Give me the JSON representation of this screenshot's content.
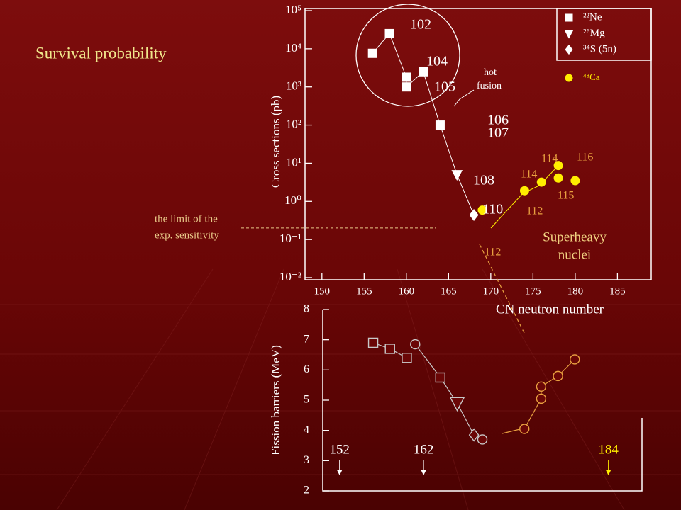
{
  "slide_title": "Survival probability",
  "chart_data": [
    {
      "type": "scatter",
      "yscale": "log",
      "ylabel": "Cross sections (pb)",
      "xlabel": "CN neutron number",
      "xlim": [
        148,
        189
      ],
      "xticks": [
        150,
        155,
        160,
        165,
        170,
        175,
        180,
        185
      ],
      "ylim": [
        0.01,
        100000
      ],
      "yticks": [
        {
          "value": 0.01,
          "label": "10⁻²"
        },
        {
          "value": 0.1,
          "label": "10⁻¹"
        },
        {
          "value": 1,
          "label": "10⁰"
        },
        {
          "value": 10,
          "label": "10¹"
        },
        {
          "value": 100,
          "label": "10²"
        },
        {
          "value": 1000,
          "label": "10³"
        },
        {
          "value": 10000,
          "label": "10⁴"
        },
        {
          "value": 100000,
          "label": "10⁵"
        }
      ],
      "legend": "upper right",
      "series": [
        {
          "name": "²²Ne",
          "color": "#ffffff",
          "marker": "square",
          "line": true,
          "x": [
            156,
            158,
            160,
            160,
            162,
            164
          ],
          "values": [
            7600,
            25000,
            1800,
            1000,
            2500,
            100
          ]
        },
        {
          "name": "²⁶Mg",
          "color": "#ffffff",
          "marker": "triangle",
          "x": [
            166
          ],
          "values": [
            5
          ]
        },
        {
          "name": "³⁴S (5n)",
          "color": "#ffffff",
          "marker": "diamond",
          "x": [
            168
          ],
          "values": [
            0.44
          ]
        },
        {
          "name": "⁴⁸Ca",
          "color": "#ffee00",
          "marker": "circle",
          "x": [
            169,
            174,
            176,
            178,
            178,
            180
          ],
          "values": [
            0.59,
            1.9,
            3.2,
            4.1,
            8.7,
            3.5
          ]
        }
      ],
      "sensitivity_limit": {
        "value": 0.2,
        "label": [
          "the limit of the",
          "exp. sensitivity"
        ]
      },
      "annotations": [
        "102",
        "104",
        "105",
        "106",
        "107",
        "108",
        "110",
        "112",
        "112",
        "114",
        "114",
        "115",
        "116",
        "hot",
        "fusion",
        "Superheavy",
        "nuclei"
      ]
    },
    {
      "type": "scatter",
      "ylabel": "Fission barriers (MeV)",
      "xlim": [
        150,
        188
      ],
      "ylim": [
        2,
        8
      ],
      "yticks": [
        2,
        3,
        4,
        5,
        6,
        7,
        8
      ],
      "series": [
        {
          "color": "#c8c8c8",
          "marker": "square",
          "line": true,
          "x": [
            156,
            158,
            160
          ],
          "values": [
            6.9,
            6.7,
            6.4
          ]
        },
        {
          "color": "#c8c8c8",
          "markers": [
            "circle",
            "square",
            "triangle",
            "diamond",
            "circle"
          ],
          "line": true,
          "x": [
            161,
            164,
            166,
            168,
            169
          ],
          "values": [
            6.85,
            5.75,
            4.9,
            3.85,
            3.7
          ]
        },
        {
          "color": "#e8a040",
          "marker": "circle",
          "line": true,
          "x": [
            174,
            176,
            176,
            178,
            180
          ],
          "values": [
            4.05,
            5.05,
            5.45,
            5.8,
            6.35
          ]
        }
      ],
      "magic_numbers": [
        152,
        162,
        184
      ]
    }
  ]
}
